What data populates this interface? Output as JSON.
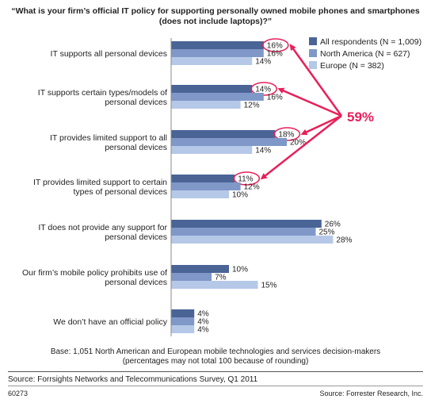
{
  "title": {
    "line1": "“What is your firm’s official IT policy for supporting personally owned mobile phones and smartphones",
    "line2": "(does not include laptops)?”"
  },
  "legend": [
    {
      "label": "All respondents (N = 1,009)",
      "color": "#4a6496"
    },
    {
      "label": "North America (N = 627)",
      "color": "#7f98c8"
    },
    {
      "label": "Europe (N = 382)",
      "color": "#b6c8e8"
    }
  ],
  "annotation": {
    "label": "59%",
    "color": "#e8205a"
  },
  "chart_data": {
    "type": "bar",
    "orientation": "horizontal",
    "categories": [
      [
        "IT supports all personal devices"
      ],
      [
        "IT supports certain types/models of",
        "personal devices"
      ],
      [
        "IT provides limited support to all",
        "personal devices"
      ],
      [
        "IT provides limited support to certain",
        "types of personal devices"
      ],
      [
        "IT does not provide any support for",
        "personal devices"
      ],
      [
        "Our firm’s mobile policy prohibits use of",
        "personal devices"
      ],
      [
        "We don’t have an official policy"
      ]
    ],
    "series": [
      {
        "name": "All respondents (N = 1,009)",
        "values": [
          16,
          14,
          18,
          11,
          26,
          10,
          4
        ]
      },
      {
        "name": "North America (N = 627)",
        "values": [
          16,
          16,
          20,
          12,
          25,
          7,
          4
        ]
      },
      {
        "name": "Europe (N = 382)",
        "values": [
          14,
          12,
          14,
          10,
          28,
          15,
          4
        ]
      }
    ],
    "value_suffix": "%",
    "circled": [
      {
        "category_index": 0,
        "series_index": 0
      },
      {
        "category_index": 1,
        "series_index": 0
      },
      {
        "category_index": 2,
        "series_index": 0
      },
      {
        "category_index": 3,
        "series_index": 0
      }
    ]
  },
  "base": {
    "line1": "Base: 1,051 North American and European mobile technologies and services decision-makers",
    "line2": "(percentages may not total 100 because of rounding)"
  },
  "source": "Source: Forrsights Networks and Telecommunications Survey, Q1 2011",
  "figure_id": "60273",
  "credit": "Source: Forrester Research, Inc."
}
